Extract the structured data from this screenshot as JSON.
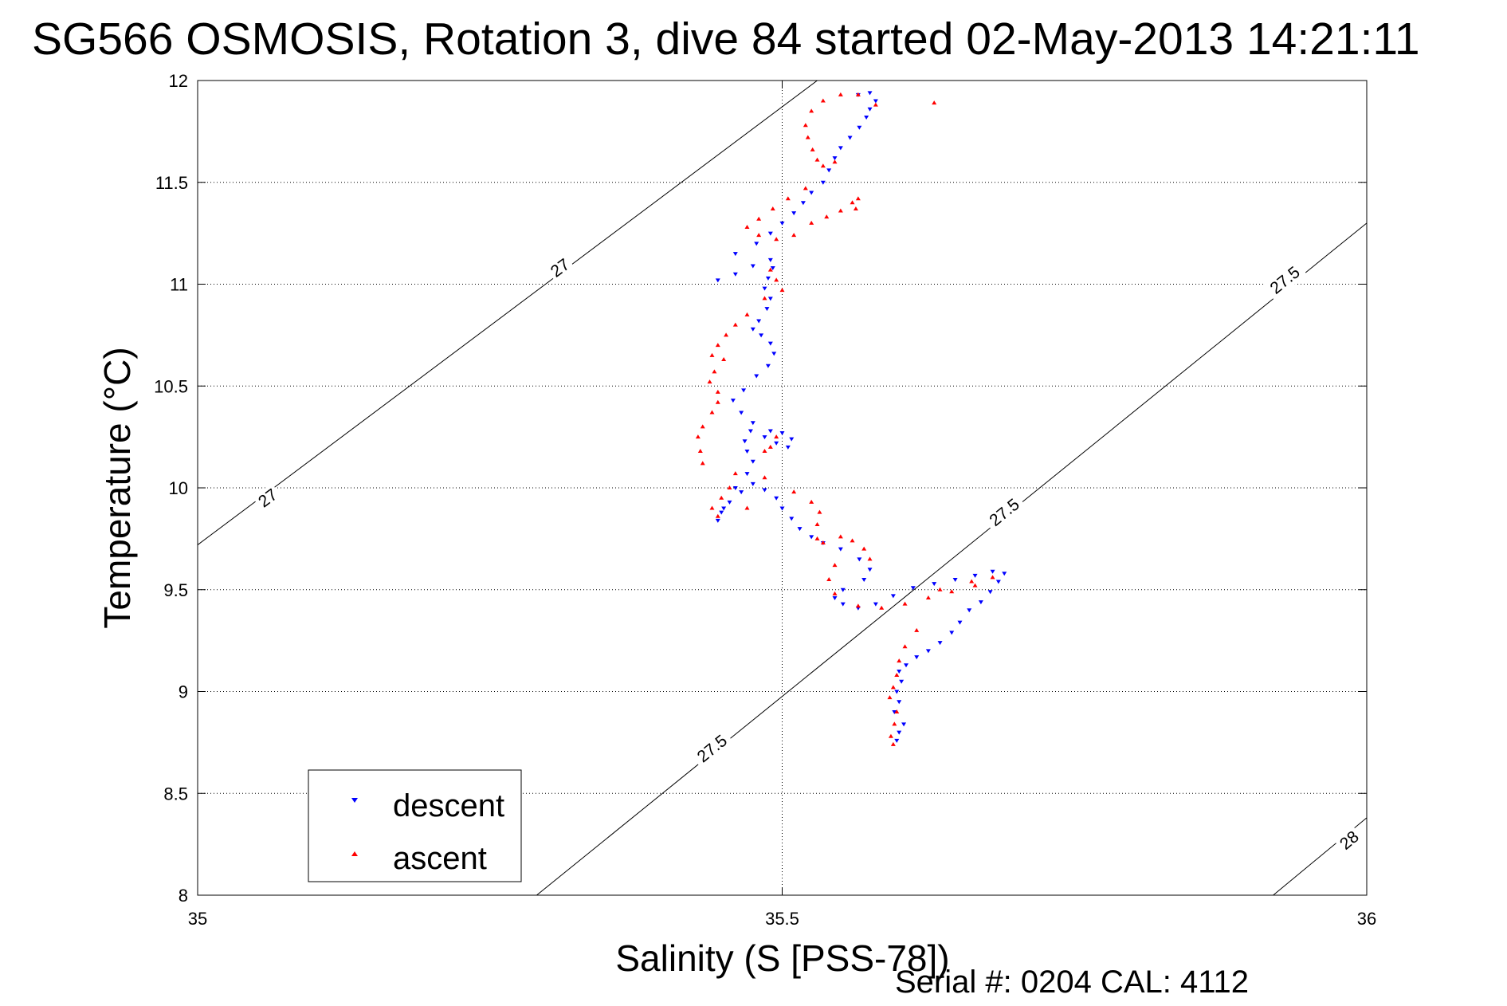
{
  "chart_data": {
    "type": "scatter",
    "title": "SG566 OSMOSIS, Rotation 3, dive 84 started 02-May-2013 14:21:11",
    "xlabel": "Salinity (S [PSS-78])",
    "ylabel": "Temperature (°C)",
    "xlim": [
      35,
      36
    ],
    "ylim": [
      8,
      12
    ],
    "x_ticks": [
      "35",
      "35.5",
      "36"
    ],
    "y_ticks": [
      "8",
      "8.5",
      "9",
      "9.5",
      "10",
      "10.5",
      "11",
      "11.5",
      "12"
    ],
    "x_tick_values": [
      35,
      35.5,
      36
    ],
    "y_tick_values": [
      8,
      8.5,
      9,
      9.5,
      10,
      10.5,
      11,
      11.5,
      12
    ],
    "grid": true,
    "legend_position": "bottom-left",
    "footer": "Serial #: 0204  CAL: 4112",
    "density_contours": [
      {
        "label": "27",
        "points": [
          [
            35,
            9.72
          ],
          [
            35.53,
            12.0
          ]
        ],
        "label_at": [
          [
            35.06,
            9.95
          ],
          [
            35.31,
            11.08
          ]
        ]
      },
      {
        "label": "27.5",
        "points": [
          [
            35.29,
            8.0
          ],
          [
            36,
            11.3
          ]
        ],
        "label_at": [
          [
            35.44,
            8.72
          ],
          [
            35.69,
            9.88
          ],
          [
            35.93,
            11.02
          ]
        ]
      },
      {
        "label": "28",
        "points": [
          [
            35.92,
            8.0
          ],
          [
            36,
            8.38
          ]
        ],
        "label_at": [
          [
            35.985,
            8.27
          ]
        ]
      }
    ],
    "series": [
      {
        "name": "descent",
        "color": "#0000ff",
        "marker": "triangle-down",
        "points": [
          [
            35.598,
            8.76
          ],
          [
            35.6,
            8.8
          ],
          [
            35.604,
            8.84
          ],
          [
            35.596,
            8.9
          ],
          [
            35.6,
            8.95
          ],
          [
            35.598,
            9.0
          ],
          [
            35.602,
            9.05
          ],
          [
            35.6,
            9.1
          ],
          [
            35.606,
            9.13
          ],
          [
            35.615,
            9.17
          ],
          [
            35.625,
            9.2
          ],
          [
            35.635,
            9.24
          ],
          [
            35.645,
            9.29
          ],
          [
            35.652,
            9.34
          ],
          [
            35.66,
            9.4
          ],
          [
            35.67,
            9.44
          ],
          [
            35.678,
            9.49
          ],
          [
            35.685,
            9.54
          ],
          [
            35.69,
            9.58
          ],
          [
            35.68,
            9.59
          ],
          [
            35.665,
            9.57
          ],
          [
            35.648,
            9.55
          ],
          [
            35.63,
            9.53
          ],
          [
            35.612,
            9.51
          ],
          [
            35.595,
            9.47
          ],
          [
            35.58,
            9.43
          ],
          [
            35.565,
            9.41
          ],
          [
            35.552,
            9.43
          ],
          [
            35.545,
            9.46
          ],
          [
            35.552,
            9.5
          ],
          [
            35.57,
            9.55
          ],
          [
            35.575,
            9.6
          ],
          [
            35.566,
            9.65
          ],
          [
            35.55,
            9.7
          ],
          [
            35.535,
            9.73
          ],
          [
            35.525,
            9.76
          ],
          [
            35.515,
            9.8
          ],
          [
            35.508,
            9.85
          ],
          [
            35.5,
            9.9
          ],
          [
            35.495,
            9.95
          ],
          [
            35.485,
            9.99
          ],
          [
            35.475,
            10.02
          ],
          [
            35.465,
            9.98
          ],
          [
            35.455,
            9.93
          ],
          [
            35.448,
            9.88
          ],
          [
            35.445,
            9.84
          ],
          [
            35.45,
            9.9
          ],
          [
            35.46,
            10.0
          ],
          [
            35.47,
            10.07
          ],
          [
            35.475,
            10.13
          ],
          [
            35.47,
            10.18
          ],
          [
            35.468,
            10.23
          ],
          [
            35.473,
            10.28
          ],
          [
            35.485,
            10.25
          ],
          [
            35.495,
            10.22
          ],
          [
            35.505,
            10.2
          ],
          [
            35.508,
            10.24
          ],
          [
            35.5,
            10.27
          ],
          [
            35.49,
            10.28
          ],
          [
            35.475,
            10.32
          ],
          [
            35.465,
            10.37
          ],
          [
            35.458,
            10.43
          ],
          [
            35.467,
            10.48
          ],
          [
            35.478,
            10.55
          ],
          [
            35.488,
            10.6
          ],
          [
            35.493,
            10.66
          ],
          [
            35.49,
            10.71
          ],
          [
            35.482,
            10.75
          ],
          [
            35.475,
            10.78
          ],
          [
            35.48,
            10.82
          ],
          [
            35.487,
            10.88
          ],
          [
            35.49,
            10.93
          ],
          [
            35.485,
            10.98
          ],
          [
            35.488,
            11.03
          ],
          [
            35.492,
            11.08
          ],
          [
            35.49,
            11.12
          ],
          [
            35.475,
            11.09
          ],
          [
            35.46,
            11.05
          ],
          [
            35.445,
            11.02
          ],
          [
            35.46,
            11.15
          ],
          [
            35.478,
            11.2
          ],
          [
            35.49,
            11.25
          ],
          [
            35.5,
            11.3
          ],
          [
            35.51,
            11.35
          ],
          [
            35.518,
            11.4
          ],
          [
            35.525,
            11.45
          ],
          [
            35.535,
            11.5
          ],
          [
            35.54,
            11.56
          ],
          [
            35.545,
            11.62
          ],
          [
            35.55,
            11.67
          ],
          [
            35.558,
            11.72
          ],
          [
            35.566,
            11.77
          ],
          [
            35.572,
            11.82
          ],
          [
            35.575,
            11.86
          ],
          [
            35.58,
            11.9
          ],
          [
            35.575,
            11.94
          ],
          [
            35.565,
            11.93
          ]
        ]
      },
      {
        "name": "ascent",
        "color": "#ff0000",
        "marker": "triangle-up",
        "points": [
          [
            35.58,
            11.88
          ],
          [
            35.565,
            11.93
          ],
          [
            35.55,
            11.93
          ],
          [
            35.535,
            11.9
          ],
          [
            35.525,
            11.85
          ],
          [
            35.52,
            11.78
          ],
          [
            35.522,
            11.72
          ],
          [
            35.526,
            11.66
          ],
          [
            35.53,
            11.61
          ],
          [
            35.535,
            11.58
          ],
          [
            35.545,
            11.6
          ],
          [
            35.52,
            11.47
          ],
          [
            35.505,
            11.42
          ],
          [
            35.492,
            11.37
          ],
          [
            35.48,
            11.32
          ],
          [
            35.47,
            11.28
          ],
          [
            35.48,
            11.24
          ],
          [
            35.495,
            11.22
          ],
          [
            35.51,
            11.24
          ],
          [
            35.525,
            11.3
          ],
          [
            35.538,
            11.33
          ],
          [
            35.55,
            11.36
          ],
          [
            35.56,
            11.4
          ],
          [
            35.565,
            11.42
          ],
          [
            35.563,
            11.37
          ],
          [
            35.63,
            11.89
          ],
          [
            35.49,
            11.07
          ],
          [
            35.495,
            11.02
          ],
          [
            35.5,
            10.97
          ],
          [
            35.485,
            10.93
          ],
          [
            35.47,
            10.85
          ],
          [
            35.46,
            10.8
          ],
          [
            35.452,
            10.75
          ],
          [
            35.445,
            10.7
          ],
          [
            35.44,
            10.65
          ],
          [
            35.45,
            10.63
          ],
          [
            35.442,
            10.57
          ],
          [
            35.438,
            10.52
          ],
          [
            35.445,
            10.47
          ],
          [
            35.445,
            10.42
          ],
          [
            35.44,
            10.37
          ],
          [
            35.432,
            10.3
          ],
          [
            35.428,
            10.25
          ],
          [
            35.43,
            10.18
          ],
          [
            35.432,
            10.12
          ],
          [
            35.46,
            10.07
          ],
          [
            35.455,
            10.0
          ],
          [
            35.448,
            9.95
          ],
          [
            35.44,
            9.9
          ],
          [
            35.445,
            9.86
          ],
          [
            35.47,
            9.9
          ],
          [
            35.485,
            10.05
          ],
          [
            35.49,
            10.2
          ],
          [
            35.495,
            10.25
          ],
          [
            35.485,
            10.18
          ],
          [
            35.51,
            9.98
          ],
          [
            35.525,
            9.93
          ],
          [
            35.532,
            9.88
          ],
          [
            35.53,
            9.82
          ],
          [
            35.53,
            9.75
          ],
          [
            35.535,
            9.73
          ],
          [
            35.55,
            9.76
          ],
          [
            35.56,
            9.74
          ],
          [
            35.57,
            9.7
          ],
          [
            35.575,
            9.65
          ],
          [
            35.545,
            9.62
          ],
          [
            35.54,
            9.55
          ],
          [
            35.545,
            9.48
          ],
          [
            35.565,
            9.42
          ],
          [
            35.585,
            9.41
          ],
          [
            35.605,
            9.43
          ],
          [
            35.625,
            9.46
          ],
          [
            35.645,
            9.49
          ],
          [
            35.665,
            9.52
          ],
          [
            35.68,
            9.56
          ],
          [
            35.662,
            9.54
          ],
          [
            35.635,
            9.5
          ],
          [
            35.615,
            9.3
          ],
          [
            35.605,
            9.22
          ],
          [
            35.6,
            9.15
          ],
          [
            35.598,
            9.08
          ],
          [
            35.595,
            9.02
          ],
          [
            35.592,
            8.97
          ],
          [
            35.598,
            8.9
          ],
          [
            35.596,
            8.84
          ],
          [
            35.593,
            8.78
          ],
          [
            35.595,
            8.74
          ]
        ]
      }
    ]
  }
}
